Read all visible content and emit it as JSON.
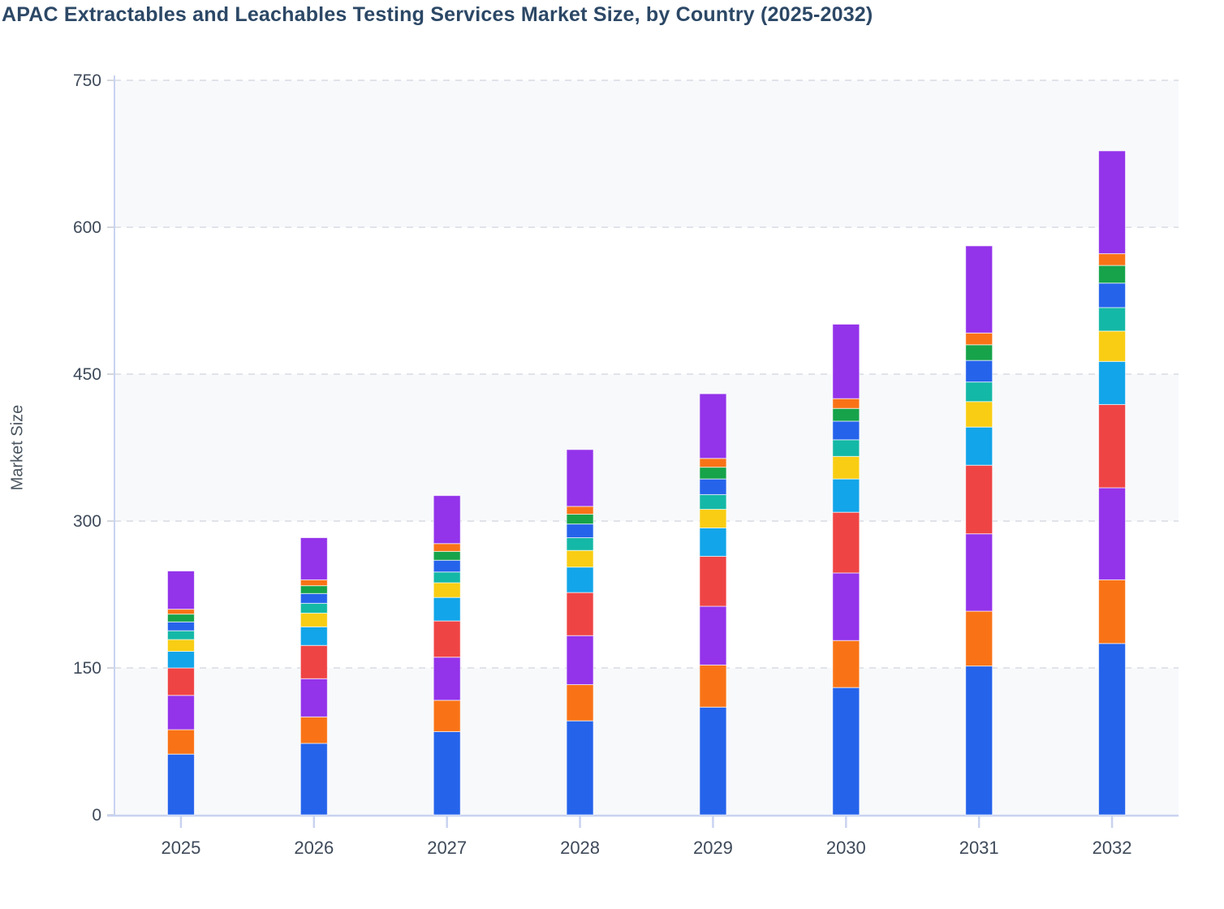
{
  "chart_data": {
    "type": "bar",
    "stacked": true,
    "title": "APAC Extractables and Leachables Testing Services Market Size, by Country (2025-2032)",
    "xlabel": "",
    "ylabel": "Market Size",
    "ylim": [
      0,
      750
    ],
    "y_ticks": [
      0,
      150,
      300,
      450,
      600,
      750
    ],
    "categories": [
      "2025",
      "2026",
      "2027",
      "2028",
      "2029",
      "2030",
      "2031",
      "2032"
    ],
    "legend": "none",
    "grid": "horizontal-dashed",
    "series": [
      {
        "name": "segment-1-blue",
        "color": "#2563EB",
        "values": [
          62,
          73,
          85,
          96,
          110,
          130,
          152,
          175
        ]
      },
      {
        "name": "segment-2-orange",
        "color": "#F97316",
        "values": [
          25,
          27,
          32,
          37,
          43,
          48,
          56,
          65
        ]
      },
      {
        "name": "segment-3-purple",
        "color": "#9333EA",
        "values": [
          35,
          39,
          44,
          50,
          60,
          69,
          79,
          94
        ]
      },
      {
        "name": "segment-4-red",
        "color": "#EF4444",
        "values": [
          28,
          34,
          37,
          44,
          51,
          62,
          70,
          85
        ]
      },
      {
        "name": "segment-5-skyblue",
        "color": "#12A5E9",
        "values": [
          17,
          19,
          24,
          26,
          29,
          34,
          39,
          44
        ]
      },
      {
        "name": "segment-6-yellow",
        "color": "#F9CD13",
        "values": [
          12,
          14,
          15,
          17,
          19,
          23,
          26,
          31
        ]
      },
      {
        "name": "segment-7-teal",
        "color": "#14B8A6",
        "values": [
          9,
          10,
          11,
          13,
          15,
          17,
          20,
          24
        ]
      },
      {
        "name": "segment-8-royalblue",
        "color": "#2563EB",
        "values": [
          9,
          10,
          12,
          14,
          16,
          19,
          22,
          25
        ]
      },
      {
        "name": "segment-9-green",
        "color": "#16A34A",
        "values": [
          8,
          8,
          9,
          10,
          12,
          13,
          16,
          18
        ]
      },
      {
        "name": "segment-10-orange",
        "color": "#F97316",
        "values": [
          5,
          6,
          8,
          8,
          9,
          10,
          12,
          12
        ]
      },
      {
        "name": "segment-11-purple",
        "color": "#9333EA",
        "values": [
          39,
          43,
          49,
          58,
          66,
          76,
          89,
          105
        ]
      }
    ],
    "totals": [
      249,
      283,
      326,
      373,
      430,
      501,
      581,
      678
    ]
  },
  "style_colors": {
    "title_text": "#2C4866",
    "tick_text": "#3E4A5A",
    "axis_title_text": "#4A5560",
    "axis_line": "#C9D3F0",
    "y_tick_mark": "#D4D7DD",
    "gridline": "#E0E3E9",
    "band_fill": "#F8F9FB",
    "segment_border": "rgba(255,255,255,0.65)"
  }
}
